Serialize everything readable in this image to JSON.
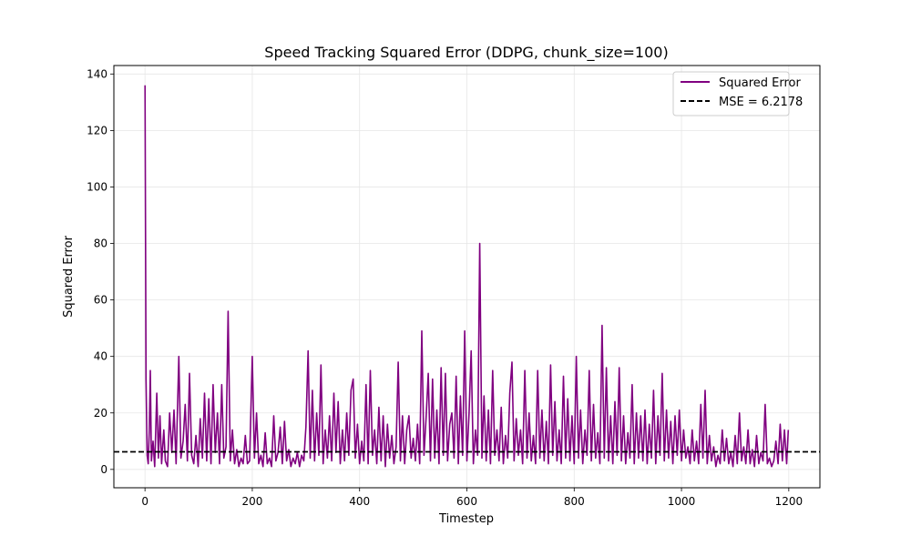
{
  "chart_data": {
    "type": "line",
    "title": "Speed Tracking Squared Error (DDPG, chunk_size=100)",
    "xlabel": "Timestep",
    "ylabel": "Squared Error",
    "xlim": [
      -58,
      1258
    ],
    "ylim": [
      -6.5,
      143
    ],
    "xticks": [
      0,
      200,
      400,
      600,
      800,
      1000,
      1200
    ],
    "yticks": [
      0,
      20,
      40,
      60,
      80,
      100,
      120,
      140
    ],
    "grid": true,
    "legend_position": "top-right",
    "series": [
      {
        "name": "Squared Error",
        "color": "#800080",
        "points": [
          [
            0,
            136
          ],
          [
            2,
            32
          ],
          [
            4,
            5
          ],
          [
            6,
            2
          ],
          [
            8,
            14
          ],
          [
            10,
            35
          ],
          [
            12,
            3
          ],
          [
            15,
            10
          ],
          [
            18,
            1
          ],
          [
            22,
            27
          ],
          [
            25,
            4
          ],
          [
            28,
            19
          ],
          [
            31,
            2
          ],
          [
            35,
            14
          ],
          [
            38,
            3
          ],
          [
            42,
            1
          ],
          [
            46,
            20
          ],
          [
            50,
            6
          ],
          [
            54,
            21
          ],
          [
            58,
            2
          ],
          [
            63,
            40
          ],
          [
            67,
            4
          ],
          [
            71,
            10
          ],
          [
            75,
            23
          ],
          [
            79,
            3
          ],
          [
            83,
            34
          ],
          [
            87,
            5
          ],
          [
            91,
            2
          ],
          [
            95,
            12
          ],
          [
            99,
            1
          ],
          [
            103,
            18
          ],
          [
            107,
            4
          ],
          [
            111,
            27
          ],
          [
            115,
            3
          ],
          [
            119,
            25
          ],
          [
            123,
            2
          ],
          [
            127,
            30
          ],
          [
            131,
            6
          ],
          [
            135,
            20
          ],
          [
            139,
            2
          ],
          [
            143,
            30
          ],
          [
            147,
            4
          ],
          [
            151,
            8
          ],
          [
            155,
            56
          ],
          [
            159,
            3
          ],
          [
            163,
            14
          ],
          [
            167,
            2
          ],
          [
            171,
            7
          ],
          [
            175,
            1
          ],
          [
            179,
            4
          ],
          [
            183,
            2
          ],
          [
            187,
            12
          ],
          [
            191,
            2
          ],
          [
            195,
            3
          ],
          [
            200,
            40
          ],
          [
            204,
            4
          ],
          [
            208,
            20
          ],
          [
            212,
            2
          ],
          [
            216,
            5
          ],
          [
            220,
            1
          ],
          [
            224,
            13
          ],
          [
            228,
            2
          ],
          [
            232,
            4
          ],
          [
            236,
            1
          ],
          [
            240,
            19
          ],
          [
            244,
            3
          ],
          [
            248,
            6
          ],
          [
            252,
            15
          ],
          [
            256,
            2
          ],
          [
            260,
            17
          ],
          [
            264,
            3
          ],
          [
            268,
            7
          ],
          [
            272,
            1
          ],
          [
            276,
            4
          ],
          [
            280,
            2
          ],
          [
            284,
            6
          ],
          [
            288,
            1
          ],
          [
            292,
            5
          ],
          [
            296,
            3
          ],
          [
            300,
            15
          ],
          [
            304,
            42
          ],
          [
            308,
            4
          ],
          [
            312,
            28
          ],
          [
            316,
            3
          ],
          [
            320,
            20
          ],
          [
            324,
            5
          ],
          [
            328,
            37
          ],
          [
            332,
            2
          ],
          [
            336,
            14
          ],
          [
            340,
            4
          ],
          [
            344,
            19
          ],
          [
            348,
            3
          ],
          [
            352,
            27
          ],
          [
            356,
            6
          ],
          [
            360,
            24
          ],
          [
            364,
            2
          ],
          [
            368,
            14
          ],
          [
            372,
            3
          ],
          [
            376,
            20
          ],
          [
            380,
            5
          ],
          [
            384,
            28
          ],
          [
            388,
            32
          ],
          [
            392,
            4
          ],
          [
            396,
            16
          ],
          [
            400,
            2
          ],
          [
            404,
            10
          ],
          [
            408,
            3
          ],
          [
            412,
            30
          ],
          [
            416,
            2
          ],
          [
            420,
            35
          ],
          [
            424,
            5
          ],
          [
            428,
            14
          ],
          [
            432,
            2
          ],
          [
            436,
            22
          ],
          [
            440,
            3
          ],
          [
            444,
            19
          ],
          [
            448,
            1
          ],
          [
            452,
            16
          ],
          [
            456,
            4
          ],
          [
            460,
            12
          ],
          [
            464,
            2
          ],
          [
            468,
            8
          ],
          [
            472,
            38
          ],
          [
            476,
            3
          ],
          [
            480,
            19
          ],
          [
            484,
            2
          ],
          [
            488,
            14
          ],
          [
            492,
            19
          ],
          [
            496,
            4
          ],
          [
            500,
            11
          ],
          [
            504,
            3
          ],
          [
            508,
            16
          ],
          [
            512,
            2
          ],
          [
            516,
            49
          ],
          [
            520,
            5
          ],
          [
            524,
            18
          ],
          [
            528,
            34
          ],
          [
            532,
            3
          ],
          [
            536,
            32
          ],
          [
            540,
            4
          ],
          [
            544,
            21
          ],
          [
            548,
            2
          ],
          [
            552,
            36
          ],
          [
            556,
            5
          ],
          [
            560,
            34
          ],
          [
            564,
            3
          ],
          [
            568,
            16
          ],
          [
            572,
            20
          ],
          [
            576,
            4
          ],
          [
            580,
            33
          ],
          [
            584,
            2
          ],
          [
            588,
            26
          ],
          [
            592,
            5
          ],
          [
            596,
            49
          ],
          [
            600,
            3
          ],
          [
            604,
            20
          ],
          [
            608,
            42
          ],
          [
            612,
            2
          ],
          [
            616,
            14
          ],
          [
            620,
            5
          ],
          [
            624,
            80
          ],
          [
            628,
            4
          ],
          [
            632,
            26
          ],
          [
            636,
            3
          ],
          [
            640,
            21
          ],
          [
            644,
            2
          ],
          [
            648,
            35
          ],
          [
            652,
            5
          ],
          [
            656,
            14
          ],
          [
            660,
            3
          ],
          [
            664,
            22
          ],
          [
            668,
            2
          ],
          [
            672,
            12
          ],
          [
            676,
            4
          ],
          [
            680,
            27
          ],
          [
            684,
            38
          ],
          [
            688,
            3
          ],
          [
            692,
            18
          ],
          [
            696,
            5
          ],
          [
            700,
            14
          ],
          [
            704,
            2
          ],
          [
            708,
            35
          ],
          [
            712,
            4
          ],
          [
            716,
            20
          ],
          [
            720,
            3
          ],
          [
            724,
            12
          ],
          [
            728,
            2
          ],
          [
            732,
            35
          ],
          [
            736,
            4
          ],
          [
            740,
            21
          ],
          [
            744,
            3
          ],
          [
            748,
            17
          ],
          [
            752,
            2
          ],
          [
            756,
            37
          ],
          [
            760,
            5
          ],
          [
            764,
            24
          ],
          [
            768,
            3
          ],
          [
            772,
            14
          ],
          [
            776,
            2
          ],
          [
            780,
            33
          ],
          [
            784,
            4
          ],
          [
            788,
            25
          ],
          [
            792,
            3
          ],
          [
            796,
            19
          ],
          [
            800,
            2
          ],
          [
            804,
            40
          ],
          [
            808,
            4
          ],
          [
            812,
            21
          ],
          [
            816,
            2
          ],
          [
            820,
            14
          ],
          [
            824,
            5
          ],
          [
            828,
            35
          ],
          [
            832,
            3
          ],
          [
            836,
            23
          ],
          [
            840,
            4
          ],
          [
            844,
            13
          ],
          [
            848,
            2
          ],
          [
            852,
            51
          ],
          [
            856,
            4
          ],
          [
            860,
            36
          ],
          [
            864,
            3
          ],
          [
            868,
            19
          ],
          [
            872,
            2
          ],
          [
            876,
            24
          ],
          [
            880,
            5
          ],
          [
            884,
            36
          ],
          [
            888,
            3
          ],
          [
            892,
            19
          ],
          [
            896,
            2
          ],
          [
            900,
            13
          ],
          [
            904,
            4
          ],
          [
            908,
            30
          ],
          [
            912,
            2
          ],
          [
            916,
            20
          ],
          [
            920,
            4
          ],
          [
            924,
            19
          ],
          [
            928,
            3
          ],
          [
            932,
            21
          ],
          [
            936,
            2
          ],
          [
            940,
            16
          ],
          [
            944,
            4
          ],
          [
            948,
            28
          ],
          [
            952,
            2
          ],
          [
            956,
            19
          ],
          [
            960,
            5
          ],
          [
            964,
            34
          ],
          [
            968,
            3
          ],
          [
            972,
            21
          ],
          [
            976,
            4
          ],
          [
            980,
            17
          ],
          [
            984,
            2
          ],
          [
            988,
            19
          ],
          [
            992,
            5
          ],
          [
            996,
            21
          ],
          [
            1000,
            3
          ],
          [
            1004,
            14
          ],
          [
            1008,
            4
          ],
          [
            1012,
            8
          ],
          [
            1016,
            2
          ],
          [
            1020,
            14
          ],
          [
            1024,
            3
          ],
          [
            1028,
            10
          ],
          [
            1032,
            2
          ],
          [
            1036,
            23
          ],
          [
            1040,
            4
          ],
          [
            1044,
            28
          ],
          [
            1048,
            2
          ],
          [
            1052,
            12
          ],
          [
            1056,
            3
          ],
          [
            1060,
            8
          ],
          [
            1064,
            1
          ],
          [
            1068,
            5
          ],
          [
            1072,
            2
          ],
          [
            1076,
            14
          ],
          [
            1080,
            3
          ],
          [
            1084,
            11
          ],
          [
            1088,
            2
          ],
          [
            1092,
            6
          ],
          [
            1096,
            1
          ],
          [
            1100,
            12
          ],
          [
            1104,
            2
          ],
          [
            1108,
            20
          ],
          [
            1112,
            3
          ],
          [
            1116,
            8
          ],
          [
            1120,
            2
          ],
          [
            1124,
            14
          ],
          [
            1128,
            2
          ],
          [
            1132,
            7
          ],
          [
            1136,
            1
          ],
          [
            1140,
            12
          ],
          [
            1144,
            2
          ],
          [
            1148,
            6
          ],
          [
            1152,
            3
          ],
          [
            1156,
            23
          ],
          [
            1160,
            2
          ],
          [
            1164,
            4
          ],
          [
            1168,
            1
          ],
          [
            1172,
            3
          ],
          [
            1176,
            10
          ],
          [
            1180,
            2
          ],
          [
            1184,
            16
          ],
          [
            1188,
            3
          ],
          [
            1192,
            14
          ],
          [
            1196,
            2
          ],
          [
            1199,
            14
          ]
        ]
      },
      {
        "name": "MSE = 6.2178",
        "color": "#000000",
        "dashed": true,
        "y": 6.2178
      }
    ]
  }
}
